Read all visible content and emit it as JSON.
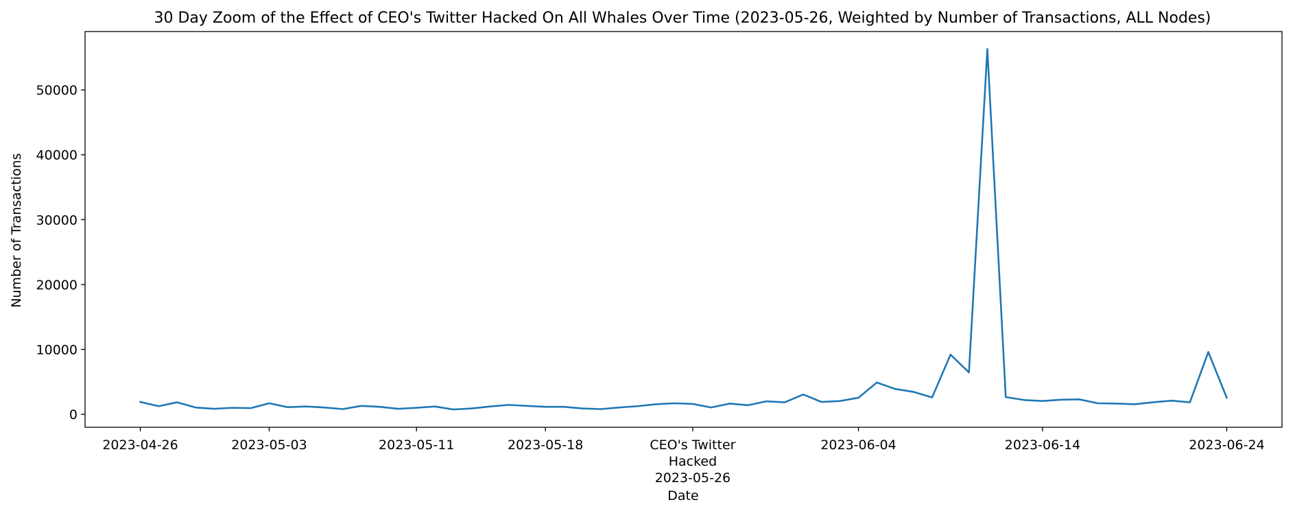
{
  "chart_data": {
    "type": "line",
    "title": "30 Day Zoom of the Effect of CEO's Twitter Hacked On All Whales Over Time (2023-05-26, Weighted by Number of Transactions, ALL Nodes)",
    "xlabel": "Date",
    "ylabel": "Number of Transactions",
    "xlim": [
      "2023-04-23",
      "2023-06-27"
    ],
    "ylim": [
      -2000,
      59000
    ],
    "yticks": [
      0,
      10000,
      20000,
      30000,
      40000,
      50000
    ],
    "ytick_labels": [
      "0",
      "10000",
      "20000",
      "30000",
      "40000",
      "50000"
    ],
    "xticks": [
      {
        "date": "2023-04-26",
        "label": "2023-04-26"
      },
      {
        "date": "2023-05-03",
        "label": "2023-05-03"
      },
      {
        "date": "2023-05-11",
        "label": "2023-05-11"
      },
      {
        "date": "2023-05-18",
        "label": "2023-05-18"
      },
      {
        "date": "2023-05-26",
        "label": "CEO's Twitter",
        "label2": "Hacked",
        "label3": "2023-05-26"
      },
      {
        "date": "2023-06-04",
        "label": "2023-06-04"
      },
      {
        "date": "2023-06-14",
        "label": "2023-06-14"
      },
      {
        "date": "2023-06-24",
        "label": "2023-06-24"
      }
    ],
    "grid": false,
    "color": "#1f77b4",
    "series": [
      {
        "name": "Number of Transactions",
        "x": [
          "2023-04-26",
          "2023-04-27",
          "2023-04-28",
          "2023-04-29",
          "2023-04-30",
          "2023-05-01",
          "2023-05-02",
          "2023-05-03",
          "2023-05-04",
          "2023-05-05",
          "2023-05-06",
          "2023-05-07",
          "2023-05-08",
          "2023-05-09",
          "2023-05-10",
          "2023-05-11",
          "2023-05-12",
          "2023-05-13",
          "2023-05-14",
          "2023-05-15",
          "2023-05-16",
          "2023-05-17",
          "2023-05-18",
          "2023-05-19",
          "2023-05-20",
          "2023-05-21",
          "2023-05-22",
          "2023-05-23",
          "2023-05-24",
          "2023-05-25",
          "2023-05-26",
          "2023-05-27",
          "2023-05-28",
          "2023-05-29",
          "2023-05-30",
          "2023-05-31",
          "2023-06-01",
          "2023-06-02",
          "2023-06-03",
          "2023-06-04",
          "2023-06-05",
          "2023-06-06",
          "2023-06-07",
          "2023-06-08",
          "2023-06-09",
          "2023-06-10",
          "2023-06-11",
          "2023-06-12",
          "2023-06-13",
          "2023-06-14",
          "2023-06-15",
          "2023-06-16",
          "2023-06-17",
          "2023-06-18",
          "2023-06-19",
          "2023-06-20",
          "2023-06-21",
          "2023-06-22",
          "2023-06-23",
          "2023-06-24"
        ],
        "values": [
          1900,
          1250,
          1850,
          1050,
          850,
          1000,
          950,
          1700,
          1100,
          1200,
          1050,
          800,
          1300,
          1150,
          850,
          1000,
          1200,
          750,
          900,
          1200,
          1450,
          1300,
          1150,
          1150,
          900,
          800,
          1050,
          1250,
          1550,
          1700,
          1600,
          1050,
          1650,
          1400,
          2000,
          1850,
          3050,
          1900,
          2050,
          2550,
          4900,
          3900,
          3450,
          2600,
          9200,
          6450,
          56300,
          2650,
          2200,
          2050,
          2250,
          2300,
          1700,
          1650,
          1550,
          1850,
          2100,
          1850,
          9600,
          2550
        ]
      }
    ]
  }
}
